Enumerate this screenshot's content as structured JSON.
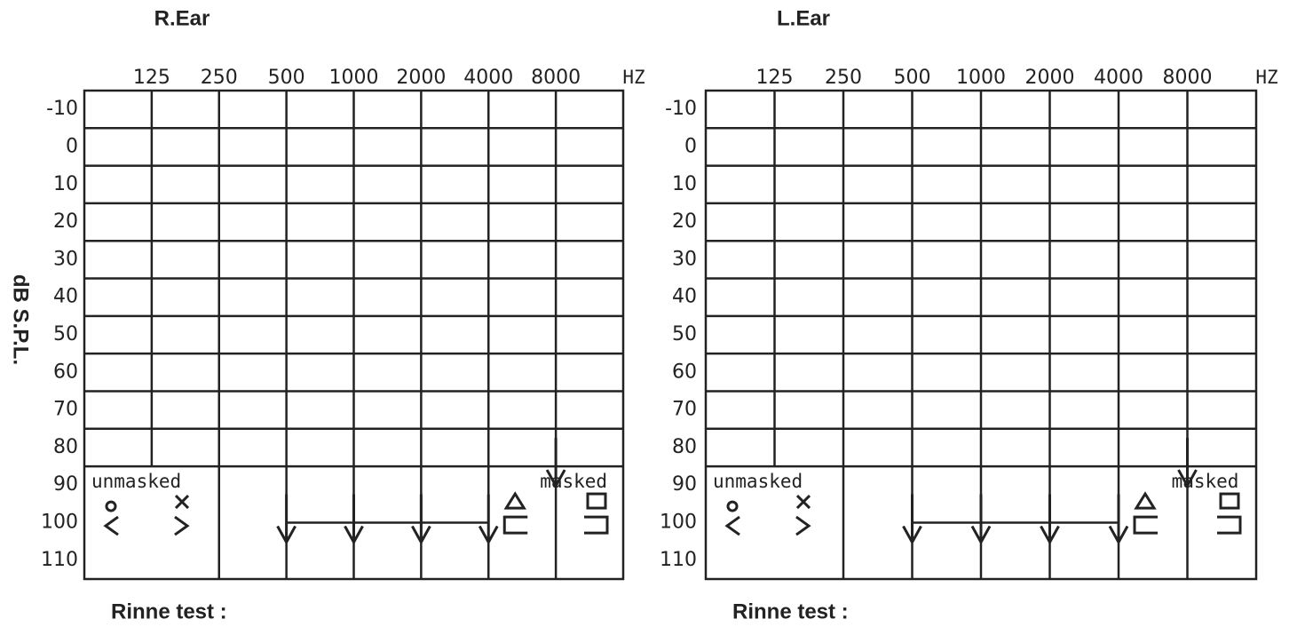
{
  "y_axis_label": "dB S.P.L.",
  "chart_data": [
    {
      "type": "line",
      "title": "R.Ear",
      "x_label": "HZ",
      "categories": [
        "125",
        "250",
        "500",
        "1000",
        "2000",
        "4000",
        "8000"
      ],
      "series": [
        {
          "color": "#222222",
          "values": [
            null,
            null,
            100,
            100,
            100,
            100,
            null
          ]
        },
        {
          "color": "#222222",
          "values": [
            null,
            null,
            null,
            null,
            null,
            null,
            85
          ]
        }
      ],
      "ylim": [
        -10,
        110
      ],
      "yticks": [
        -10,
        0,
        10,
        20,
        30,
        40,
        50,
        60,
        70,
        80,
        90,
        100,
        110
      ],
      "grid": true,
      "legend": {
        "unmasked": "unmasked",
        "masked": "masked"
      },
      "footer": "Rinne test :"
    },
    {
      "type": "line",
      "title": "L.Ear",
      "x_label": "HZ",
      "categories": [
        "125",
        "250",
        "500",
        "1000",
        "2000",
        "4000",
        "8000"
      ],
      "series": [
        {
          "color": "#222222",
          "values": [
            null,
            null,
            100,
            100,
            100,
            100,
            null
          ]
        },
        {
          "color": "#222222",
          "values": [
            null,
            null,
            null,
            null,
            null,
            null,
            85
          ]
        }
      ],
      "ylim": [
        -10,
        110
      ],
      "yticks": [
        -10,
        0,
        10,
        20,
        30,
        40,
        50,
        60,
        70,
        80,
        90,
        100,
        110
      ],
      "grid": true,
      "legend": {
        "unmasked": "unmasked",
        "masked": "masked"
      },
      "footer": "Rinne test :"
    }
  ]
}
